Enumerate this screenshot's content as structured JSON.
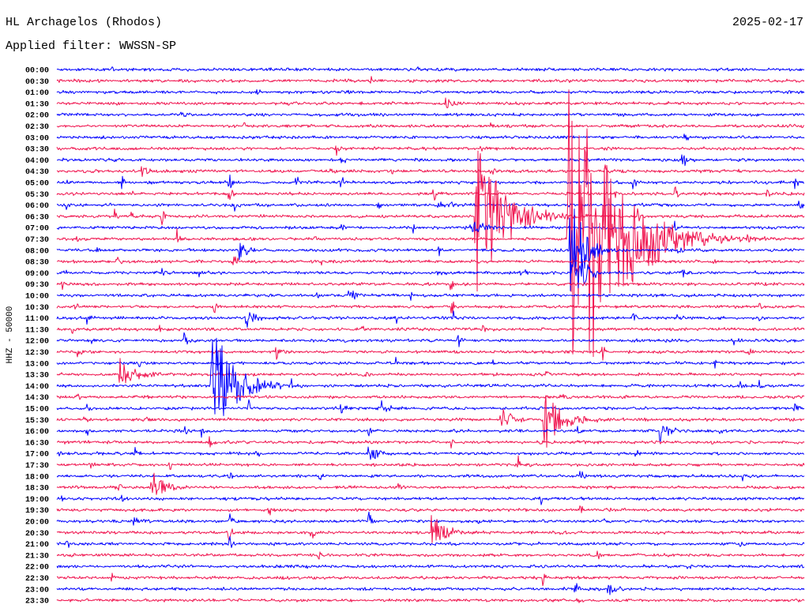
{
  "chart_data": {
    "type": "line",
    "title": "HL Archagelos (Rhodos)",
    "date": "2025-02-17",
    "subtitle": "Applied filter: WWSSN-SP",
    "ylabel": "HHZ - 50000",
    "xlim": [
      0,
      30
    ],
    "trace_colors": [
      "#0000ff",
      "#f0144f"
    ],
    "rows": [
      {
        "time": "00:00",
        "events": [
          {
            "t": 2.2,
            "amp": 3
          },
          {
            "t": 14.5,
            "amp": 2
          }
        ]
      },
      {
        "time": "00:30",
        "events": [
          {
            "t": 12.6,
            "amp": 3
          },
          {
            "t": 24.0,
            "amp": 2
          }
        ]
      },
      {
        "time": "01:00",
        "events": [
          {
            "t": 8.0,
            "amp": 3
          },
          {
            "t": 11.7,
            "amp": 3
          }
        ]
      },
      {
        "time": "01:30",
        "events": [
          {
            "t": 15.6,
            "amp": 7,
            "dur": 1.0
          },
          {
            "t": 24.5,
            "amp": 2
          }
        ]
      },
      {
        "time": "02:00",
        "events": [
          {
            "t": 5.0,
            "amp": 4
          }
        ]
      },
      {
        "time": "02:30",
        "events": [
          {
            "t": 7.5,
            "amp": 4
          },
          {
            "t": 17.4,
            "amp": 3
          }
        ]
      },
      {
        "time": "03:00",
        "events": [
          {
            "t": 2.6,
            "amp": 2
          },
          {
            "t": 25.2,
            "amp": 8
          }
        ]
      },
      {
        "time": "03:30",
        "events": [
          {
            "t": 11.2,
            "amp": 8
          },
          {
            "t": 17.0,
            "amp": 5
          },
          {
            "t": 22.0,
            "amp": 3
          }
        ]
      },
      {
        "time": "04:00",
        "events": [
          {
            "t": 8.5,
            "amp": 2
          },
          {
            "t": 11.4,
            "amp": 4
          },
          {
            "t": 25.1,
            "amp": 10
          }
        ]
      },
      {
        "time": "04:30",
        "events": [
          {
            "t": 3.4,
            "amp": 6,
            "dur": 0.8
          },
          {
            "t": 11.0,
            "amp": 6
          },
          {
            "t": 13.4,
            "amp": 7
          },
          {
            "t": 17.4,
            "amp": 6
          },
          {
            "t": 22.0,
            "amp": 6
          },
          {
            "t": 27.3,
            "amp": 3
          }
        ]
      },
      {
        "time": "05:00",
        "events": [
          {
            "t": 0.35,
            "amp": 9
          },
          {
            "t": 2.6,
            "amp": 6
          },
          {
            "t": 6.9,
            "amp": 10
          },
          {
            "t": 9.6,
            "amp": 8
          },
          {
            "t": 11.4,
            "amp": 6,
            "dur": 0.6
          },
          {
            "t": 23.1,
            "amp": 7
          },
          {
            "t": 29.6,
            "amp": 6
          }
        ]
      },
      {
        "time": "05:30",
        "events": [
          {
            "t": 3.0,
            "amp": 3
          },
          {
            "t": 6.9,
            "amp": 7
          },
          {
            "t": 15.1,
            "amp": 8
          },
          {
            "t": 22.4,
            "amp": 5
          },
          {
            "t": 24.8,
            "amp": 7
          },
          {
            "t": 28.5,
            "amp": 4
          }
        ]
      },
      {
        "time": "06:00",
        "events": [
          {
            "t": 0.4,
            "amp": 6
          },
          {
            "t": 7.1,
            "amp": 8
          },
          {
            "t": 12.9,
            "amp": 5
          },
          {
            "t": 15.2,
            "amp": 5,
            "dur": 1.6
          },
          {
            "t": 23.5,
            "amp": 4
          },
          {
            "t": 29.8,
            "amp": 7
          }
        ]
      },
      {
        "time": "06:30",
        "events": [
          {
            "t": 2.3,
            "amp": 6
          },
          {
            "t": 3.0,
            "amp": 6
          },
          {
            "t": 4.2,
            "amp": 7
          },
          {
            "t": 8.2,
            "amp": 5
          },
          {
            "t": 16.8,
            "amp": 60,
            "dur": 3.2
          },
          {
            "t": 19.4,
            "amp": 5
          },
          {
            "t": 23.3,
            "amp": 6
          }
        ]
      },
      {
        "time": "07:00",
        "events": [
          {
            "t": 11.4,
            "amp": 7
          },
          {
            "t": 14.3,
            "amp": 5
          },
          {
            "t": 16.6,
            "amp": 8,
            "dur": 1.5
          },
          {
            "t": 24.8,
            "amp": 4
          }
        ]
      },
      {
        "time": "07:30",
        "events": [
          {
            "t": 0.8,
            "amp": 4
          },
          {
            "t": 4.8,
            "amp": 9
          },
          {
            "t": 10.3,
            "amp": 5
          },
          {
            "t": 20.5,
            "amp": 170,
            "dur": 4.6
          },
          {
            "t": 27.7,
            "amp": 5
          }
        ]
      },
      {
        "time": "08:00",
        "events": [
          {
            "t": 1.6,
            "amp": 5
          },
          {
            "t": 7.3,
            "amp": 8,
            "dur": 1.1
          },
          {
            "t": 15.3,
            "amp": 7
          },
          {
            "t": 20.6,
            "amp": 45,
            "dur": 1.5
          },
          {
            "t": 24.9,
            "amp": 4
          }
        ]
      },
      {
        "time": "08:30",
        "events": [
          {
            "t": 2.4,
            "amp": 5
          },
          {
            "t": 7.1,
            "amp": 8
          },
          {
            "t": 10.6,
            "amp": 4
          },
          {
            "t": 26.2,
            "amp": 4
          }
        ]
      },
      {
        "time": "09:00",
        "events": [
          {
            "t": 0.2,
            "amp": 6
          },
          {
            "t": 4.2,
            "amp": 6
          },
          {
            "t": 5.7,
            "amp": 5
          },
          {
            "t": 15.3,
            "amp": 5
          },
          {
            "t": 18.6,
            "amp": 4,
            "dur": 1.3
          },
          {
            "t": 20.7,
            "amp": 30,
            "dur": 1.2
          },
          {
            "t": 25.1,
            "amp": 5
          },
          {
            "t": 28.0,
            "amp": 5
          }
        ]
      },
      {
        "time": "09:30",
        "events": [
          {
            "t": 0.2,
            "amp": 5
          },
          {
            "t": 15.8,
            "amp": 6
          },
          {
            "t": 28.3,
            "amp": 4
          }
        ]
      },
      {
        "time": "10:00",
        "events": [
          {
            "t": 10.4,
            "amp": 5
          },
          {
            "t": 11.7,
            "amp": 7,
            "dur": 0.9
          },
          {
            "t": 14.2,
            "amp": 4
          }
        ]
      },
      {
        "time": "10:30",
        "events": [
          {
            "t": 0.7,
            "amp": 5
          },
          {
            "t": 6.3,
            "amp": 7
          },
          {
            "t": 15.8,
            "amp": 10
          },
          {
            "t": 28.2,
            "amp": 5
          }
        ]
      },
      {
        "time": "11:00",
        "events": [
          {
            "t": 1.2,
            "amp": 6
          },
          {
            "t": 7.6,
            "amp": 8,
            "dur": 1.1
          },
          {
            "t": 13.6,
            "amp": 5
          },
          {
            "t": 15.9,
            "amp": 6
          },
          {
            "t": 23.1,
            "amp": 6
          },
          {
            "t": 24.9,
            "amp": 4
          },
          {
            "t": 28.2,
            "amp": 4
          }
        ]
      },
      {
        "time": "11:30",
        "events": [
          {
            "t": 0.6,
            "amp": 5
          },
          {
            "t": 4.1,
            "amp": 4
          },
          {
            "t": 12.2,
            "amp": 4
          },
          {
            "t": 17.1,
            "amp": 4
          }
        ]
      },
      {
        "time": "12:00",
        "events": [
          {
            "t": 1.4,
            "amp": 5
          },
          {
            "t": 5.1,
            "amp": 8
          },
          {
            "t": 16.1,
            "amp": 7
          },
          {
            "t": 27.1,
            "amp": 5
          }
        ]
      },
      {
        "time": "12:30",
        "events": [
          {
            "t": 0.8,
            "amp": 5
          },
          {
            "t": 8.8,
            "amp": 7
          },
          {
            "t": 21.9,
            "amp": 6
          },
          {
            "t": 27.8,
            "amp": 5
          }
        ]
      },
      {
        "time": "13:00",
        "events": [
          {
            "t": 3.3,
            "amp": 5
          },
          {
            "t": 13.6,
            "amp": 4
          },
          {
            "t": 17.5,
            "amp": 4
          },
          {
            "t": 26.4,
            "amp": 4
          }
        ]
      },
      {
        "time": "13:30",
        "events": [
          {
            "t": 2.5,
            "amp": 14,
            "dur": 1.6
          },
          {
            "t": 12.3,
            "amp": 6
          },
          {
            "t": 19.6,
            "amp": 5
          }
        ]
      },
      {
        "time": "14:00",
        "events": [
          {
            "t": 6.2,
            "amp": 48,
            "dur": 2.6
          },
          {
            "t": 9.4,
            "amp": 6
          },
          {
            "t": 27.4,
            "amp": 6
          },
          {
            "t": 28.2,
            "amp": 5
          }
        ]
      },
      {
        "time": "14:30",
        "events": [
          {
            "t": 0.8,
            "amp": 5
          },
          {
            "t": 3.6,
            "amp": 4
          },
          {
            "t": 20.2,
            "amp": 6
          }
        ]
      },
      {
        "time": "15:00",
        "events": [
          {
            "t": 1.2,
            "amp": 5
          },
          {
            "t": 7.7,
            "amp": 6
          },
          {
            "t": 11.4,
            "amp": 7
          },
          {
            "t": 12.9,
            "amp": 8,
            "dur": 1.2
          },
          {
            "t": 29.6,
            "amp": 5
          }
        ]
      },
      {
        "time": "15:30",
        "events": [
          {
            "t": 1.1,
            "amp": 5
          },
          {
            "t": 3.6,
            "amp": 4
          },
          {
            "t": 17.8,
            "amp": 12,
            "dur": 1.4
          },
          {
            "t": 19.5,
            "amp": 24,
            "dur": 2.2
          }
        ]
      },
      {
        "time": "16:00",
        "events": [
          {
            "t": 1.2,
            "amp": 6
          },
          {
            "t": 5.1,
            "amp": 6
          },
          {
            "t": 5.8,
            "amp": 5
          },
          {
            "t": 12.5,
            "amp": 6
          },
          {
            "t": 20.9,
            "amp": 5
          },
          {
            "t": 24.2,
            "amp": 8,
            "dur": 1.1
          },
          {
            "t": 26.6,
            "amp": 6
          }
        ]
      },
      {
        "time": "16:30",
        "events": [
          {
            "t": 6.1,
            "amp": 6
          },
          {
            "t": 10.6,
            "amp": 5
          },
          {
            "t": 15.8,
            "amp": 5
          }
        ]
      },
      {
        "time": "17:00",
        "events": [
          {
            "t": 0.1,
            "amp": 6
          },
          {
            "t": 3.1,
            "amp": 6
          },
          {
            "t": 8.0,
            "amp": 5
          },
          {
            "t": 12.5,
            "amp": 9,
            "dur": 0.9
          },
          {
            "t": 23.2,
            "amp": 4
          }
        ]
      },
      {
        "time": "17:30",
        "events": [
          {
            "t": 1.3,
            "amp": 6
          },
          {
            "t": 4.5,
            "amp": 5
          },
          {
            "t": 18.5,
            "amp": 8
          },
          {
            "t": 26.0,
            "amp": 4
          }
        ]
      },
      {
        "time": "18:00",
        "events": [
          {
            "t": 6.9,
            "amp": 6
          },
          {
            "t": 10.5,
            "amp": 7
          },
          {
            "t": 21.0,
            "amp": 6
          },
          {
            "t": 27.5,
            "amp": 5
          }
        ]
      },
      {
        "time": "18:30",
        "events": [
          {
            "t": 2.5,
            "amp": 6
          },
          {
            "t": 3.8,
            "amp": 14,
            "dur": 1.3
          },
          {
            "t": 13.7,
            "amp": 5
          },
          {
            "t": 22.1,
            "amp": 4
          }
        ]
      },
      {
        "time": "19:00",
        "events": [
          {
            "t": 0.2,
            "amp": 5
          },
          {
            "t": 2.6,
            "amp": 6
          },
          {
            "t": 19.4,
            "amp": 7
          }
        ]
      },
      {
        "time": "19:30",
        "events": [
          {
            "t": 8.5,
            "amp": 5
          },
          {
            "t": 21.0,
            "amp": 5
          },
          {
            "t": 25.8,
            "amp": 3
          }
        ]
      },
      {
        "time": "20:00",
        "events": [
          {
            "t": 3.1,
            "amp": 8
          },
          {
            "t": 6.9,
            "amp": 9
          },
          {
            "t": 12.5,
            "amp": 9
          },
          {
            "t": 16.9,
            "amp": 6
          },
          {
            "t": 22.0,
            "amp": 5
          }
        ]
      },
      {
        "time": "20:30",
        "events": [
          {
            "t": 6.9,
            "amp": 8
          },
          {
            "t": 10.2,
            "amp": 8
          },
          {
            "t": 15.0,
            "amp": 17,
            "dur": 1.5
          },
          {
            "t": 20.2,
            "amp": 4
          }
        ]
      },
      {
        "time": "21:00",
        "events": [
          {
            "t": 0.4,
            "amp": 6
          },
          {
            "t": 6.9,
            "amp": 9
          },
          {
            "t": 27.4,
            "amp": 5
          }
        ]
      },
      {
        "time": "21:30",
        "events": [
          {
            "t": 0.5,
            "amp": 5
          },
          {
            "t": 10.5,
            "amp": 5
          },
          {
            "t": 21.7,
            "amp": 5
          }
        ]
      },
      {
        "time": "22:00",
        "events": [
          {
            "t": 10.0,
            "amp": 2
          },
          {
            "t": 25.3,
            "amp": 4
          }
        ]
      },
      {
        "time": "22:30",
        "events": [
          {
            "t": 2.2,
            "amp": 5
          },
          {
            "t": 19.5,
            "amp": 8
          }
        ]
      },
      {
        "time": "23:00",
        "events": [
          {
            "t": 20.8,
            "amp": 9
          },
          {
            "t": 22.1,
            "amp": 5,
            "dur": 1.0
          }
        ]
      },
      {
        "time": "23:30",
        "events": [
          {
            "t": 20.9,
            "amp": 6
          }
        ]
      }
    ]
  }
}
